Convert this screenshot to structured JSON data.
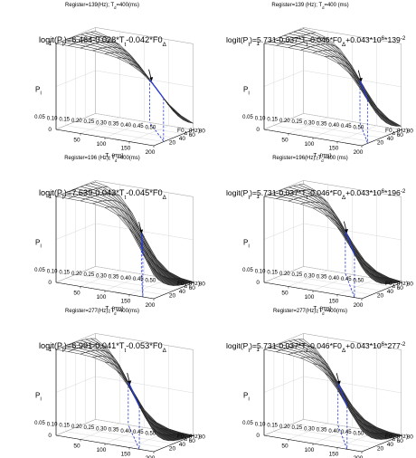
{
  "axes": {
    "p": "P",
    "p_sub": "I",
    "tt": "T",
    "tt_sub": "t",
    "tt_unit": " (ms)",
    "f0": "F0",
    "f0_sub": "Δ",
    "f0_unit": " (Hz)"
  },
  "chart_data": [
    {
      "type": "surface",
      "title": "Register=139(Hz); T_d=400(ms)",
      "equation": "logit(P_I)=6.464-0.028*T_t-0.042*F0_Δ",
      "model": {
        "b0": 6.464,
        "b_tt": -0.028,
        "b_f0": -0.042
      },
      "x_label": "T_t (ms)",
      "x_range": [
        0,
        200
      ],
      "x_ticks": [
        50,
        100,
        150,
        200
      ],
      "y_label": "F0_Δ (Hz)",
      "y_range": [
        0,
        80
      ],
      "y_ticks": [
        20,
        40,
        60,
        80
      ],
      "z_label": "P_I",
      "z_range": [
        0,
        1
      ],
      "z_ticks": [
        0,
        1
      ],
      "threshold_ticks": [
        0.05,
        0.1,
        0.15,
        0.2,
        0.25,
        0.3,
        0.35,
        0.4,
        0.45,
        0.5
      ]
    },
    {
      "type": "surface",
      "title": "Register=139 (Hz); T_d=400 (ms)",
      "equation": "logit(P_I)=5.731-0.037*T_t-0.046*F0_Δ+0.043*10^6*139^(-2)",
      "model": {
        "b0": 5.731,
        "b_tt": -0.037,
        "b_f0": -0.046,
        "b_reg": 0.043,
        "reg_hz": 139
      },
      "x_label": "T_t (ms)",
      "x_range": [
        0,
        200
      ],
      "x_ticks": [
        50,
        100,
        150,
        200
      ],
      "y_label": "F0_Δ (Hz)",
      "y_range": [
        0,
        80
      ],
      "y_ticks": [
        20,
        40,
        60,
        80
      ],
      "z_label": "P_I",
      "z_range": [
        0,
        1
      ],
      "z_ticks": [
        0,
        1
      ],
      "threshold_ticks": [
        0.05,
        0.1,
        0.15,
        0.2,
        0.25,
        0.3,
        0.35,
        0.4,
        0.45,
        0.5
      ]
    },
    {
      "type": "surface",
      "title": "Register=196 (Hz); T_d=400(ms)",
      "equation": "logit(P_I)=7.639-0.043*T_t-0.045*F0_Δ",
      "model": {
        "b0": 7.639,
        "b_tt": -0.043,
        "b_f0": -0.045
      },
      "x_label": "T_t (ms)",
      "x_range": [
        0,
        200
      ],
      "x_ticks": [
        50,
        100,
        150,
        200
      ],
      "y_label": "F0_Δ (Hz)",
      "y_range": [
        0,
        80
      ],
      "y_ticks": [
        20,
        40,
        60,
        80
      ],
      "z_label": "P_I",
      "z_range": [
        0,
        1
      ],
      "z_ticks": [
        0,
        1
      ],
      "threshold_ticks": [
        0.05,
        0.1,
        0.15,
        0.2,
        0.25,
        0.3,
        0.35,
        0.4,
        0.45,
        0.5
      ]
    },
    {
      "type": "surface",
      "title": "Register=196(Hz); T_d=400 (ms)",
      "equation": "logit(P_I)=5.731-0.037*T_t-0.046*F0_Δ+0.043*10^6*196^(-2)",
      "model": {
        "b0": 5.731,
        "b_tt": -0.037,
        "b_f0": -0.046,
        "b_reg": 0.043,
        "reg_hz": 196
      },
      "x_label": "T_t (ms)",
      "x_range": [
        0,
        200
      ],
      "x_ticks": [
        50,
        100,
        150,
        200
      ],
      "y_label": "F0_Δ (Hz)",
      "y_range": [
        0,
        80
      ],
      "y_ticks": [
        20,
        40,
        60,
        80
      ],
      "z_label": "P_I",
      "z_range": [
        0,
        1
      ],
      "z_ticks": [
        0,
        1
      ],
      "threshold_ticks": [
        0.05,
        0.1,
        0.15,
        0.2,
        0.25,
        0.3,
        0.35,
        0.4,
        0.45,
        0.5
      ]
    },
    {
      "type": "surface",
      "title": "Register=277(Hz); T_d=400(ms)",
      "equation": "logit(P_I)=6.991-0.041*T_t-0.053*F0_Δ",
      "model": {
        "b0": 6.991,
        "b_tt": -0.041,
        "b_f0": -0.053
      },
      "x_label": "T_t (ms)",
      "x_range": [
        0,
        200
      ],
      "x_ticks": [
        50,
        100,
        150,
        200
      ],
      "y_label": "F0_Δ (Hz)",
      "y_range": [
        0,
        80
      ],
      "y_ticks": [
        20,
        40,
        60,
        80
      ],
      "z_label": "P_I",
      "z_range": [
        0,
        1
      ],
      "z_ticks": [
        0,
        1
      ],
      "threshold_ticks": [
        0.05,
        0.1,
        0.15,
        0.2,
        0.25,
        0.3,
        0.35,
        0.4,
        0.45,
        0.5
      ]
    },
    {
      "type": "surface",
      "title": "Register=277(Hz); T_d=400(ms)",
      "equation": "logit(P_I)=5.731-0.037*T_t-0.046*F0_Δ+0.043*10^6*277^(-2)",
      "model": {
        "b0": 5.731,
        "b_tt": -0.037,
        "b_f0": -0.046,
        "b_reg": 0.043,
        "reg_hz": 277
      },
      "x_label": "T_t (ms)",
      "x_range": [
        0,
        200
      ],
      "x_ticks": [
        50,
        100,
        150,
        200
      ],
      "y_label": "F0_Δ (Hz)",
      "y_range": [
        0,
        80
      ],
      "y_ticks": [
        20,
        40,
        60,
        80
      ],
      "z_label": "P_I",
      "z_range": [
        0,
        1
      ],
      "z_ticks": [
        0,
        1
      ],
      "threshold_ticks": [
        0.05,
        0.1,
        0.15,
        0.2,
        0.25,
        0.3,
        0.35,
        0.4,
        0.45,
        0.5
      ]
    }
  ]
}
